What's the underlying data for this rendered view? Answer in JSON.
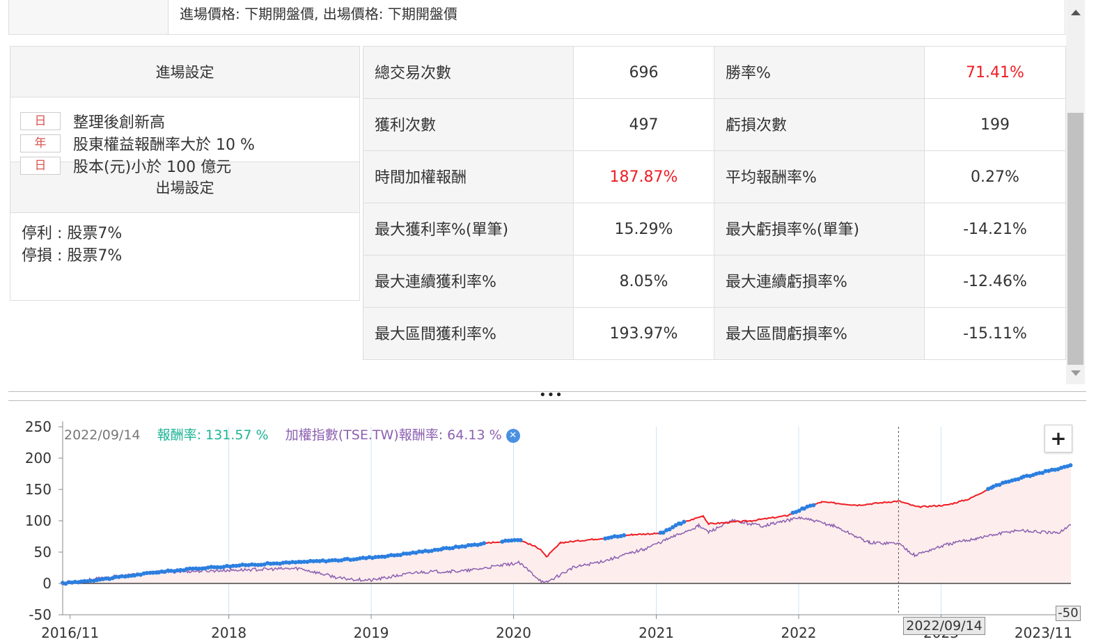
{
  "header": {
    "price_setting": "進場價格: 下期開盤價, 出場價格: 下期開盤價"
  },
  "settings": {
    "entry_title": "進場設定",
    "entry_rules": [
      {
        "freq": "日",
        "text": "整理後創新高"
      },
      {
        "freq": "年",
        "text": "股東權益報酬率大於 10 %"
      },
      {
        "freq": "日",
        "text": "股本(元)小於 100 億元"
      }
    ],
    "exit_title": "出場設定",
    "exit_rules": [
      "停利 : 股票7%",
      "停損 : 股票7%"
    ]
  },
  "stats": [
    {
      "l1": "總交易次數",
      "v1": "696",
      "l2": "勝率%",
      "v2": "71.41%",
      "v2_red": true
    },
    {
      "l1": "獲利次數",
      "v1": "497",
      "l2": "虧損次數",
      "v2": "199"
    },
    {
      "l1": "時間加權報酬",
      "v1": "187.87%",
      "v1_red": true,
      "l2": "平均報酬率%",
      "v2": "0.27%"
    },
    {
      "l1": "最大獲利率%(單筆)",
      "v1": "15.29%",
      "l2": "最大虧損率%(單筆)",
      "v2": "-14.21%"
    },
    {
      "l1": "最大連續獲利率%",
      "v1": "8.05%",
      "l2": "最大連續虧損率%",
      "v2": "-12.46%"
    },
    {
      "l1": "最大區間獲利率%",
      "v1": "193.97%",
      "l2": "最大區間虧損率%",
      "v2": "-15.11%"
    }
  ],
  "chart": {
    "legend": {
      "date": "2022/09/14",
      "ret_label": "報酬率:",
      "ret_value": "131.57 %",
      "idx_label": "加權指數(TSE.TW)報酬率:",
      "idx_value": "64.13 %"
    },
    "zoom_label": "+",
    "cursor_label": "2022/09/14",
    "y_low_label": "-50",
    "colors": {
      "strategy": "#ee1d23",
      "marker": "#2b7fe0",
      "index": "#8c5fb0",
      "fill": "#fdeeed"
    }
  },
  "chart_data": {
    "type": "line",
    "x_ticks": [
      "2016/11",
      "2018",
      "2019",
      "2020",
      "2021",
      "2022",
      "2023",
      "2023/11"
    ],
    "y_ticks": [
      250,
      200,
      150,
      100,
      50,
      0,
      -50
    ],
    "ylim": [
      -50,
      250
    ],
    "xlim": [
      "2016-11-01",
      "2023-11-30"
    ],
    "series": [
      {
        "name": "報酬率",
        "points": [
          [
            "2016-11-01",
            0
          ],
          [
            "2017-03-01",
            8
          ],
          [
            "2017-07-01",
            18
          ],
          [
            "2017-11-01",
            25
          ],
          [
            "2018-03-01",
            30
          ],
          [
            "2018-07-01",
            34
          ],
          [
            "2018-11-01",
            38
          ],
          [
            "2019-03-01",
            45
          ],
          [
            "2019-07-01",
            55
          ],
          [
            "2019-11-01",
            65
          ],
          [
            "2020-01-15",
            70
          ],
          [
            "2020-03-10",
            55
          ],
          [
            "2020-03-25",
            42
          ],
          [
            "2020-05-01",
            65
          ],
          [
            "2020-08-15",
            72
          ],
          [
            "2020-11-01",
            78
          ],
          [
            "2021-01-15",
            80
          ],
          [
            "2021-03-01",
            95
          ],
          [
            "2021-05-01",
            108
          ],
          [
            "2021-05-15",
            95
          ],
          [
            "2021-09-01",
            100
          ],
          [
            "2021-12-01",
            108
          ],
          [
            "2022-01-15",
            120
          ],
          [
            "2022-03-01",
            130
          ],
          [
            "2022-06-01",
            125
          ],
          [
            "2022-09-14",
            131.57
          ],
          [
            "2022-11-01",
            122
          ],
          [
            "2023-01-15",
            125
          ],
          [
            "2023-03-15",
            135
          ],
          [
            "2023-05-15",
            155
          ],
          [
            "2023-08-01",
            170
          ],
          [
            "2023-11-30",
            188
          ]
        ]
      },
      {
        "name": "加權指數(TSE.TW)報酬率",
        "points": [
          [
            "2016-11-01",
            0
          ],
          [
            "2017-03-01",
            10
          ],
          [
            "2017-07-01",
            18
          ],
          [
            "2017-11-01",
            20
          ],
          [
            "2018-03-01",
            22
          ],
          [
            "2018-07-01",
            24
          ],
          [
            "2018-10-15",
            8
          ],
          [
            "2019-01-01",
            5
          ],
          [
            "2019-05-01",
            18
          ],
          [
            "2019-09-01",
            20
          ],
          [
            "2020-01-15",
            33
          ],
          [
            "2020-03-20",
            0
          ],
          [
            "2020-06-01",
            25
          ],
          [
            "2020-09-01",
            38
          ],
          [
            "2020-12-01",
            55
          ],
          [
            "2021-02-15",
            75
          ],
          [
            "2021-04-20",
            92
          ],
          [
            "2021-05-15",
            82
          ],
          [
            "2021-07-15",
            100
          ],
          [
            "2021-10-01",
            92
          ],
          [
            "2022-01-05",
            105
          ],
          [
            "2022-04-01",
            92
          ],
          [
            "2022-07-01",
            65
          ],
          [
            "2022-09-14",
            64.13
          ],
          [
            "2022-10-25",
            45
          ],
          [
            "2023-01-15",
            62
          ],
          [
            "2023-04-01",
            72
          ],
          [
            "2023-07-15",
            85
          ],
          [
            "2023-10-25",
            80
          ],
          [
            "2023-11-30",
            93
          ]
        ]
      }
    ],
    "marker_periods": [
      [
        "2016-11-01",
        "2019-10-20"
      ],
      [
        "2019-12-01",
        "2020-01-25"
      ],
      [
        "2020-08-20",
        "2020-10-15"
      ],
      [
        "2021-01-10",
        "2021-03-20"
      ],
      [
        "2021-12-15",
        "2022-02-15"
      ],
      [
        "2023-05-01",
        "2023-11-30"
      ]
    ]
  }
}
